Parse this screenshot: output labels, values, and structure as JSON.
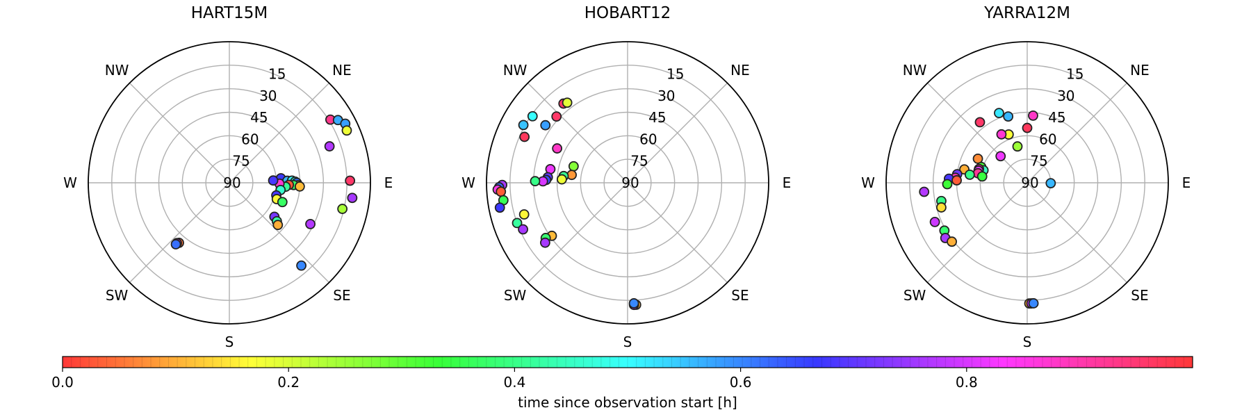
{
  "colorbar": {
    "label": "time since observation start [h]",
    "ticks": [
      "0.0",
      "0.2",
      "0.4",
      "0.6",
      "0.8"
    ],
    "min": 0,
    "max": 1
  },
  "chart_data": [
    {
      "type": "scatter",
      "title": "HART15M",
      "projection": "polar (azimuth = compass direction, N up, E right; radial = elevation, 90 at center, 0 at edge)",
      "grid": true,
      "direction_labels": [
        "NE",
        "E",
        "SE",
        "S",
        "SW",
        "W",
        "NW"
      ],
      "radial_ticks": [
        "15",
        "30",
        "45",
        "60",
        "75",
        "90"
      ],
      "points": [
        {
          "az": 58,
          "el": 14,
          "t": 0.93
        },
        {
          "az": 60,
          "el": 10,
          "t": 0.57
        },
        {
          "az": 63,
          "el": 7,
          "t": 0.58
        },
        {
          "az": 66,
          "el": 8,
          "t": 0.18
        },
        {
          "az": 70,
          "el": 22,
          "t": 0.77
        },
        {
          "az": 89,
          "el": 13,
          "t": 0.96
        },
        {
          "az": 97,
          "el": 11,
          "t": 0.76
        },
        {
          "az": 103,
          "el": 16,
          "t": 0.24
        },
        {
          "az": 85,
          "el": 57,
          "t": 0.67
        },
        {
          "az": 88,
          "el": 53,
          "t": 0.56
        },
        {
          "az": 88,
          "el": 50,
          "t": 0.5
        },
        {
          "az": 89,
          "el": 48,
          "t": 0.47
        },
        {
          "az": 90,
          "el": 47,
          "t": 0.62
        },
        {
          "az": 92,
          "el": 46,
          "t": 0.2
        },
        {
          "az": 92,
          "el": 49,
          "t": 0.37
        },
        {
          "az": 92,
          "el": 52,
          "t": 0.03
        },
        {
          "az": 93,
          "el": 45,
          "t": 0.11
        },
        {
          "az": 94,
          "el": 54,
          "t": 0.41
        },
        {
          "az": 91,
          "el": 58,
          "t": 0.87
        },
        {
          "az": 87,
          "el": 62,
          "t": 0.68
        },
        {
          "az": 98,
          "el": 57,
          "t": 0.46
        },
        {
          "az": 105,
          "el": 59,
          "t": 0.68
        },
        {
          "az": 109,
          "el": 58,
          "t": 0.16
        },
        {
          "az": 110,
          "el": 54,
          "t": 0.37
        },
        {
          "az": 127,
          "el": 54,
          "t": 0.72
        },
        {
          "az": 129,
          "el": 51,
          "t": 0.43
        },
        {
          "az": 131,
          "el": 49,
          "t": 0.1
        },
        {
          "az": 117,
          "el": 32,
          "t": 0.77
        },
        {
          "az": 139,
          "el": 20,
          "t": 0.6
        },
        {
          "az": 220,
          "el": 40,
          "t": 0.05
        },
        {
          "az": 221,
          "el": 39,
          "t": 0.78
        },
        {
          "az": 221,
          "el": 38,
          "t": 0.62
        }
      ]
    },
    {
      "type": "scatter",
      "title": "HOBART12",
      "projection": "polar (azimuth = compass direction, N up, E right; radial = elevation, 90 at center, 0 at edge)",
      "grid": true,
      "direction_labels": [
        "NE",
        "E",
        "SE",
        "S",
        "SW",
        "W",
        "NW"
      ],
      "radial_ticks": [
        "15",
        "30",
        "45",
        "60",
        "75",
        "90"
      ],
      "points": [
        {
          "az": 305,
          "el": 26,
          "t": 0.58
        },
        {
          "az": 321,
          "el": 25,
          "t": 0.96
        },
        {
          "az": 323,
          "el": 26,
          "t": 0.19
        },
        {
          "az": 313,
          "el": 28,
          "t": 0.96
        },
        {
          "az": 305,
          "el": 16,
          "t": 0.5
        },
        {
          "az": 299,
          "el": 14,
          "t": 0.55
        },
        {
          "az": 294,
          "el": 18,
          "t": 0.97
        },
        {
          "az": 296,
          "el": 40,
          "t": 0.88
        },
        {
          "az": 287,
          "el": 54,
          "t": 0.27
        },
        {
          "az": 280,
          "el": 40,
          "t": 0.82
        },
        {
          "az": 278,
          "el": 54,
          "t": 0.08
        },
        {
          "az": 276,
          "el": 49,
          "t": 0.41
        },
        {
          "az": 273,
          "el": 48,
          "t": 0.18
        },
        {
          "az": 274,
          "el": 39,
          "t": 0.7
        },
        {
          "az": 272,
          "el": 38,
          "t": 0.65
        },
        {
          "az": 271,
          "el": 36,
          "t": 0.8
        },
        {
          "az": 271,
          "el": 31,
          "t": 0.4
        },
        {
          "az": 269,
          "el": 10,
          "t": 0.76
        },
        {
          "az": 268,
          "el": 8,
          "t": 0.63
        },
        {
          "az": 267,
          "el": 7,
          "t": 0.85
        },
        {
          "az": 266,
          "el": 9,
          "t": 0.03
        },
        {
          "az": 262,
          "el": 10,
          "t": 0.36
        },
        {
          "az": 259,
          "el": 7,
          "t": 0.67
        },
        {
          "az": 253,
          "el": 21,
          "t": 0.16
        },
        {
          "az": 250,
          "el": 15,
          "t": 0.42
        },
        {
          "az": 246,
          "el": 17,
          "t": 0.76
        },
        {
          "az": 235,
          "el": 31,
          "t": 0.11
        },
        {
          "az": 236,
          "el": 27,
          "t": 0.38
        },
        {
          "az": 234,
          "el": 25,
          "t": 0.76
        },
        {
          "az": 176,
          "el": 12,
          "t": 0.1
        },
        {
          "az": 177,
          "el": 12,
          "t": 0.78
        },
        {
          "az": 177,
          "el": 13,
          "t": 0.6
        }
      ]
    },
    {
      "type": "scatter",
      "title": "YARRA12M",
      "projection": "polar (azimuth = compass direction, N up, E right; radial = elevation, 90 at center, 0 at edge)",
      "grid": true,
      "direction_labels": [
        "NE",
        "E",
        "SE",
        "S",
        "SW",
        "W",
        "NW"
      ],
      "radial_ticks": [
        "15",
        "30",
        "45",
        "60",
        "75",
        "90"
      ],
      "points": [
        {
          "az": 0,
          "el": 55,
          "t": 0.97
        },
        {
          "az": 5,
          "el": 47,
          "t": 0.88
        },
        {
          "az": 339,
          "el": 57,
          "t": 0.17
        },
        {
          "az": 332,
          "el": 55,
          "t": 0.87
        },
        {
          "az": 344,
          "el": 46,
          "t": 0.56
        },
        {
          "az": 338,
          "el": 42,
          "t": 0.52
        },
        {
          "az": 322,
          "el": 41,
          "t": 0.96
        },
        {
          "az": 345,
          "el": 66,
          "t": 0.25
        },
        {
          "az": 315,
          "el": 66,
          "t": 0.82
        },
        {
          "az": 296,
          "el": 55,
          "t": 0.07
        },
        {
          "az": 289,
          "el": 59,
          "t": 0.32
        },
        {
          "az": 286,
          "el": 61,
          "t": 0.45
        },
        {
          "az": 286,
          "el": 58,
          "t": 0.91
        },
        {
          "az": 284,
          "el": 58,
          "t": 0.82
        },
        {
          "az": 281,
          "el": 58,
          "t": 0.92
        },
        {
          "az": 282,
          "el": 49,
          "t": 0.1
        },
        {
          "az": 278,
          "el": 53,
          "t": 0.4
        },
        {
          "az": 278,
          "el": 61,
          "t": 0.34
        },
        {
          "az": 277,
          "el": 45,
          "t": 0.71
        },
        {
          "az": 274,
          "el": 44,
          "t": 0.89
        },
        {
          "az": 273,
          "el": 40,
          "t": 0.68
        },
        {
          "az": 272,
          "el": 45,
          "t": 0.03
        },
        {
          "az": 269,
          "el": 39,
          "t": 0.33
        },
        {
          "az": 265,
          "el": 24,
          "t": 0.77
        },
        {
          "az": 258,
          "el": 34,
          "t": 0.4
        },
        {
          "az": 254,
          "el": 33,
          "t": 0.14
        },
        {
          "az": 247,
          "el": 26,
          "t": 0.79
        },
        {
          "az": 240,
          "el": 29,
          "t": 0.38
        },
        {
          "az": 236,
          "el": 27,
          "t": 0.76
        },
        {
          "az": 232,
          "el": 29,
          "t": 0.1
        },
        {
          "az": 91,
          "el": 75,
          "t": 0.56
        },
        {
          "az": 179,
          "el": 13,
          "t": 0.1
        },
        {
          "az": 178,
          "el": 13,
          "t": 0.78
        },
        {
          "az": 177,
          "el": 13,
          "t": 0.6
        }
      ]
    }
  ]
}
